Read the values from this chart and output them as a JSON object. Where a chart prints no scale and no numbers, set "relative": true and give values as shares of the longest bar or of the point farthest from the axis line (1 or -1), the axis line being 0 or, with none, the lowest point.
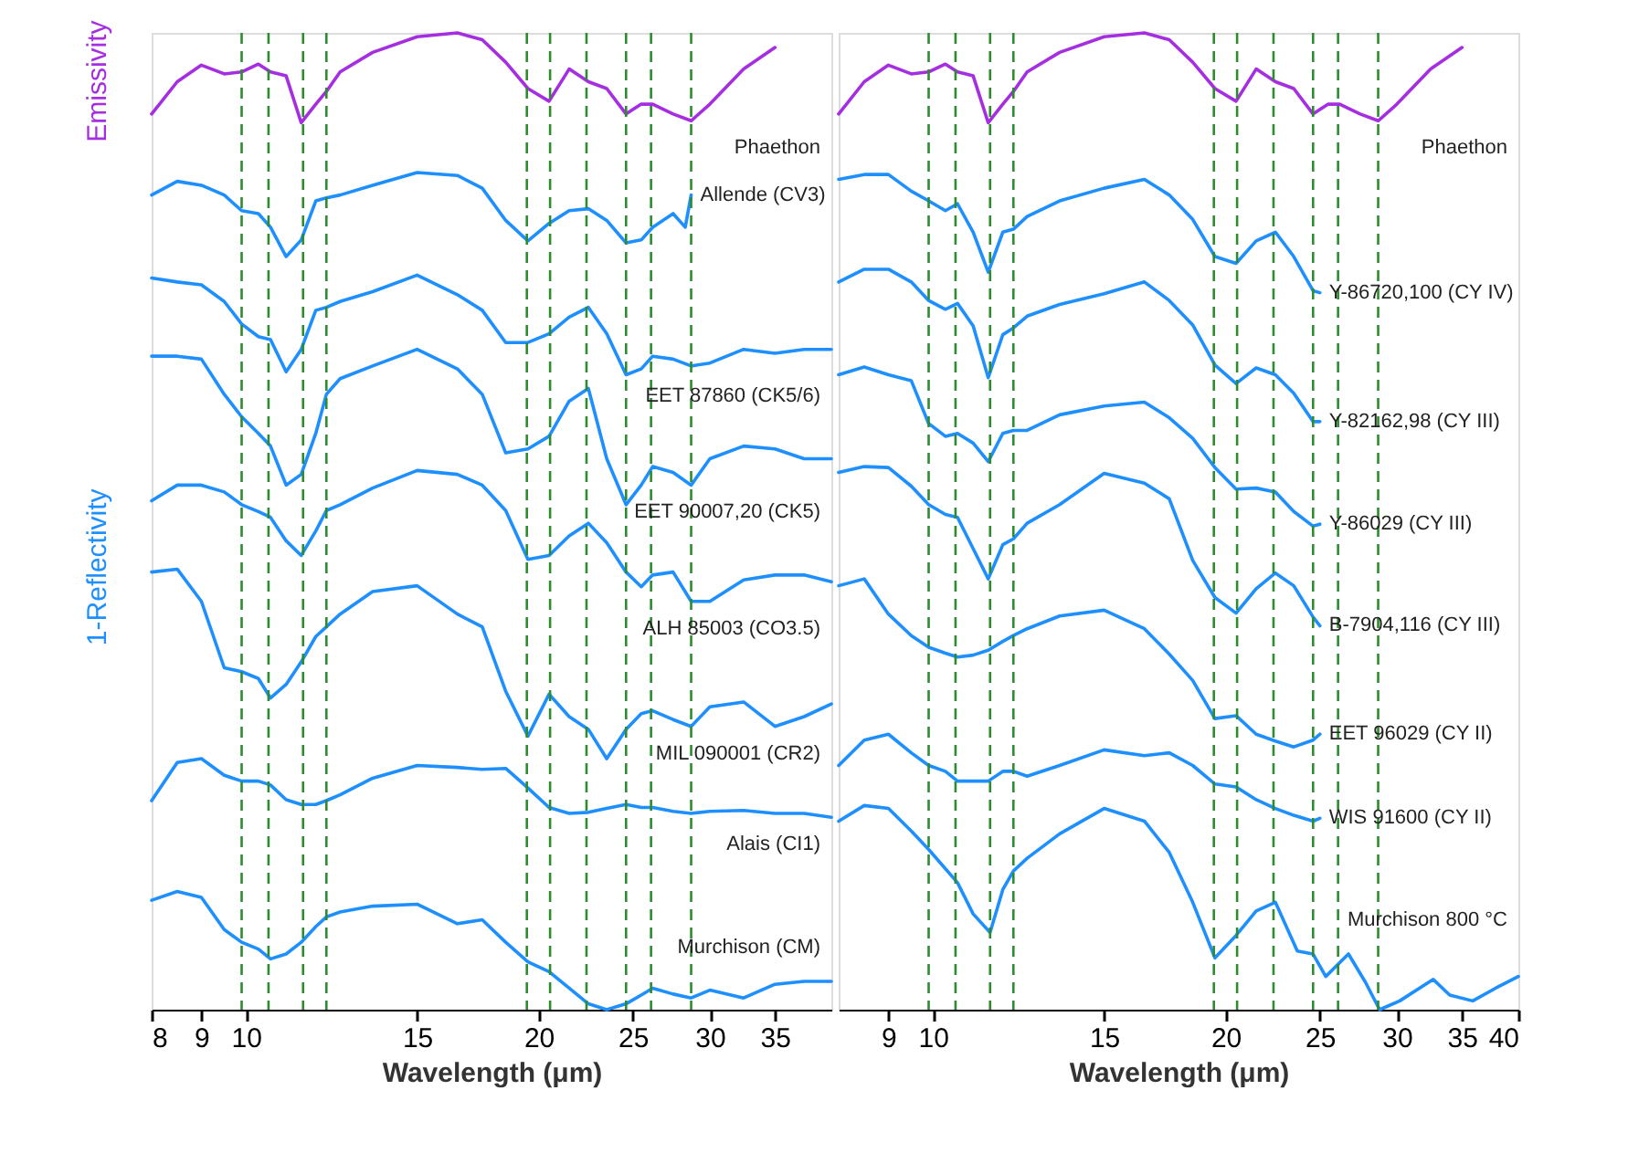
{
  "chart_data": [
    {
      "type": "line",
      "relative": true,
      "xlabel": "Wavelength (μm)",
      "ylabel": "1-Reflectivity",
      "annotations": [
        "Emissivity"
      ],
      "log": "x",
      "xlim": [
        8,
        40
      ],
      "xticks": [
        8,
        9,
        10,
        15,
        20,
        25,
        30,
        35
      ],
      "tick_labels": "x",
      "grid": false,
      "legend": false,
      "line_style": "solid",
      "ref_lines": [
        {
          "axis": "x",
          "value": 9.9,
          "color": "#2e8b2e",
          "line_style": "dashed"
        },
        {
          "axis": "x",
          "value": 10.55,
          "color": "#2e8b2e",
          "line_style": "dashed"
        },
        {
          "axis": "x",
          "value": 11.45,
          "color": "#2e8b2e",
          "line_style": "dashed"
        },
        {
          "axis": "x",
          "value": 12.1,
          "color": "#2e8b2e",
          "line_style": "dashed"
        },
        {
          "axis": "x",
          "value": 19.45,
          "color": "#2e8b2e",
          "line_style": "dashed"
        },
        {
          "axis": "x",
          "value": 20.55,
          "color": "#2e8b2e",
          "line_style": "dashed"
        },
        {
          "axis": "x",
          "value": 22.4,
          "color": "#2e8b2e",
          "line_style": "dashed"
        },
        {
          "axis": "x",
          "value": 24.6,
          "color": "#2e8b2e",
          "line_style": "dashed"
        },
        {
          "axis": "x",
          "value": 26.1,
          "color": "#2e8b2e",
          "line_style": "dashed"
        },
        {
          "axis": "x",
          "value": 28.7,
          "color": "#2e8b2e",
          "line_style": "dashed"
        }
      ],
      "series": [
        {
          "name": "Phaethon",
          "color": "#a52fe0",
          "x": [
            8,
            8.5,
            9,
            9.5,
            9.9,
            10.3,
            10.6,
            11,
            11.4,
            11.8,
            12.1,
            12.5,
            13.5,
            15,
            16.5,
            17.5,
            18.5,
            19.5,
            20.5,
            21.5,
            22.5,
            23.5,
            24.6,
            25.5,
            26.2,
            27.5,
            28.7,
            30,
            32.5,
            35
          ],
          "values": [
            0.917,
            0.95,
            0.967,
            0.958,
            0.96,
            0.968,
            0.96,
            0.956,
            0.908,
            0.927,
            0.94,
            0.96,
            0.98,
            0.996,
            1.0,
            0.993,
            0.97,
            0.943,
            0.93,
            0.963,
            0.95,
            0.943,
            0.917,
            0.927,
            0.927,
            0.917,
            0.91,
            0.927,
            0.963,
            0.985
          ]
        },
        {
          "name": "Allende (CV3)",
          "color": "#1e8fff",
          "x": [
            8,
            8.5,
            9,
            9.5,
            9.9,
            10.3,
            10.6,
            11,
            11.4,
            11.8,
            12.1,
            12.5,
            13.5,
            15,
            16.5,
            17.5,
            18.5,
            19.5,
            20.5,
            21.5,
            22.5,
            23.5,
            24.6,
            25.5,
            26.2,
            27.5,
            28.3,
            28.7
          ],
          "values": [
            0.834,
            0.848,
            0.844,
            0.834,
            0.818,
            0.815,
            0.801,
            0.771,
            0.788,
            0.828,
            0.831,
            0.834,
            0.844,
            0.857,
            0.854,
            0.841,
            0.808,
            0.787,
            0.805,
            0.818,
            0.82,
            0.808,
            0.785,
            0.788,
            0.801,
            0.815,
            0.801,
            0.834
          ]
        },
        {
          "name": "EET 87860 (CK5/6)",
          "color": "#1e8fff",
          "x": [
            8,
            8.5,
            9,
            9.5,
            9.9,
            10.3,
            10.6,
            11,
            11.4,
            11.8,
            12.1,
            12.5,
            13.5,
            15,
            16.5,
            17.5,
            18.5,
            19.5,
            20.5,
            21.5,
            22.5,
            23.5,
            24.6,
            25.5,
            26.2,
            27.5,
            28.7,
            30,
            32.5,
            35,
            37.5,
            40
          ],
          "values": [
            0.749,
            0.745,
            0.742,
            0.725,
            0.702,
            0.689,
            0.686,
            0.653,
            0.676,
            0.716,
            0.719,
            0.725,
            0.735,
            0.752,
            0.732,
            0.716,
            0.683,
            0.683,
            0.692,
            0.709,
            0.719,
            0.692,
            0.65,
            0.656,
            0.669,
            0.666,
            0.659,
            0.662,
            0.676,
            0.672,
            0.676,
            0.676
          ]
        },
        {
          "name": "EET 90007,20 (CK5)",
          "color": "#1e8fff",
          "x": [
            8,
            8.5,
            9,
            9.5,
            9.9,
            10.3,
            10.6,
            11,
            11.4,
            11.8,
            12.1,
            12.5,
            13.5,
            15,
            16.5,
            17.5,
            18.5,
            19.5,
            20.5,
            21.5,
            22.5,
            23.5,
            24.6,
            25.5,
            26.2,
            27.5,
            28.7,
            30,
            32.5,
            35,
            37.5,
            40
          ],
          "values": [
            0.669,
            0.669,
            0.666,
            0.63,
            0.607,
            0.59,
            0.577,
            0.537,
            0.548,
            0.59,
            0.63,
            0.646,
            0.659,
            0.676,
            0.656,
            0.63,
            0.57,
            0.574,
            0.587,
            0.623,
            0.636,
            0.564,
            0.517,
            0.537,
            0.556,
            0.55,
            0.537,
            0.564,
            0.577,
            0.574,
            0.564,
            0.564
          ]
        },
        {
          "name": "ALH 85003 (CO3.5)",
          "color": "#1e8fff",
          "x": [
            8,
            8.5,
            9,
            9.5,
            9.9,
            10.3,
            10.6,
            11,
            11.4,
            11.8,
            12.1,
            12.5,
            13.5,
            15,
            16.5,
            17.5,
            18.5,
            19.5,
            20.5,
            21.5,
            22.5,
            23.5,
            24.6,
            25.5,
            26.2,
            27.5,
            28.7,
            30,
            32.5,
            35,
            37.5,
            40
          ],
          "values": [
            0.521,
            0.537,
            0.537,
            0.53,
            0.517,
            0.51,
            0.504,
            0.48,
            0.465,
            0.49,
            0.511,
            0.517,
            0.534,
            0.552,
            0.548,
            0.537,
            0.511,
            0.461,
            0.465,
            0.485,
            0.498,
            0.478,
            0.448,
            0.433,
            0.445,
            0.448,
            0.418,
            0.418,
            0.44,
            0.445,
            0.445,
            0.438
          ]
        },
        {
          "name": "MIL 090001 (CR2)",
          "color": "#1e8fff",
          "x": [
            8,
            8.5,
            9,
            9.5,
            9.9,
            10.3,
            10.6,
            11,
            11.4,
            11.8,
            12.1,
            12.5,
            13.5,
            15,
            16.5,
            17.5,
            18.5,
            19.5,
            20.5,
            21.5,
            22.5,
            23.5,
            24.6,
            25.5,
            26.2,
            27.5,
            28.7,
            30,
            32.5,
            35,
            37.5,
            40
          ],
          "values": [
            0.448,
            0.451,
            0.418,
            0.35,
            0.346,
            0.339,
            0.319,
            0.333,
            0.356,
            0.382,
            0.392,
            0.405,
            0.428,
            0.434,
            0.405,
            0.392,
            0.326,
            0.28,
            0.323,
            0.3,
            0.287,
            0.257,
            0.287,
            0.303,
            0.306,
            0.297,
            0.29,
            0.31,
            0.315,
            0.29,
            0.3,
            0.313
          ]
        },
        {
          "name": "Alais (CI1)",
          "color": "#1e8fff",
          "x": [
            8,
            8.5,
            9,
            9.5,
            9.9,
            10.3,
            10.6,
            11,
            11.4,
            11.8,
            12.1,
            12.5,
            13.5,
            15,
            16.5,
            17.5,
            18.5,
            19.5,
            20.5,
            21.5,
            22.5,
            23.5,
            24.6,
            25.5,
            26.2,
            27.5,
            28.7,
            30,
            32.5,
            35,
            37.5,
            40
          ],
          "values": [
            0.214,
            0.253,
            0.257,
            0.24,
            0.234,
            0.234,
            0.23,
            0.215,
            0.21,
            0.21,
            0.214,
            0.22,
            0.237,
            0.25,
            0.248,
            0.246,
            0.247,
            0.227,
            0.207,
            0.201,
            0.202,
            0.206,
            0.21,
            0.207,
            0.207,
            0.203,
            0.201,
            0.203,
            0.204,
            0.201,
            0.201,
            0.197
          ]
        },
        {
          "name": "Murchison (CM)",
          "color": "#1e8fff",
          "x": [
            8,
            8.5,
            9,
            9.5,
            9.9,
            10.3,
            10.6,
            11,
            11.4,
            11.8,
            12.1,
            12.5,
            13.5,
            15,
            16.5,
            17.5,
            18.5,
            19.5,
            20.5,
            21.5,
            22.5,
            23.5,
            24.6,
            25.5,
            26.2,
            27.5,
            28.7,
            30,
            32.5,
            35,
            37.5,
            40
          ],
          "values": [
            0.112,
            0.121,
            0.115,
            0.082,
            0.069,
            0.062,
            0.052,
            0.057,
            0.069,
            0.085,
            0.095,
            0.1,
            0.106,
            0.108,
            0.088,
            0.092,
            0.069,
            0.049,
            0.039,
            0.022,
            0.006,
            0,
            0.006,
            0.015,
            0.022,
            0.016,
            0.012,
            0.02,
            0.012,
            0.026,
            0.029,
            0.029
          ]
        }
      ]
    },
    {
      "type": "line",
      "relative": true,
      "xlabel": "Wavelength (μm)",
      "log": "x",
      "xlim": [
        8,
        40
      ],
      "xticks": [
        9,
        10,
        15,
        20,
        25,
        30,
        35,
        40
      ],
      "tick_labels": "x",
      "grid": false,
      "legend": false,
      "line_style": "solid",
      "ref_lines": [
        {
          "axis": "x",
          "value": 9.9,
          "color": "#2e8b2e",
          "line_style": "dashed"
        },
        {
          "axis": "x",
          "value": 10.55,
          "color": "#2e8b2e",
          "line_style": "dashed"
        },
        {
          "axis": "x",
          "value": 11.45,
          "color": "#2e8b2e",
          "line_style": "dashed"
        },
        {
          "axis": "x",
          "value": 12.1,
          "color": "#2e8b2e",
          "line_style": "dashed"
        },
        {
          "axis": "x",
          "value": 19.45,
          "color": "#2e8b2e",
          "line_style": "dashed"
        },
        {
          "axis": "x",
          "value": 20.55,
          "color": "#2e8b2e",
          "line_style": "dashed"
        },
        {
          "axis": "x",
          "value": 22.4,
          "color": "#2e8b2e",
          "line_style": "dashed"
        },
        {
          "axis": "x",
          "value": 24.6,
          "color": "#2e8b2e",
          "line_style": "dashed"
        },
        {
          "axis": "x",
          "value": 26.1,
          "color": "#2e8b2e",
          "line_style": "dashed"
        },
        {
          "axis": "x",
          "value": 28.7,
          "color": "#2e8b2e",
          "line_style": "dashed"
        }
      ],
      "series": [
        {
          "name": "Phaethon",
          "color": "#a52fe0",
          "x": [
            8,
            8.5,
            9,
            9.5,
            9.9,
            10.3,
            10.6,
            11,
            11.4,
            11.8,
            12.1,
            12.5,
            13.5,
            15,
            16.5,
            17.5,
            18.5,
            19.5,
            20.5,
            21.5,
            22.5,
            23.5,
            24.6,
            25.5,
            26.2,
            27.5,
            28.7,
            30,
            32.5,
            35
          ],
          "values": [
            0.917,
            0.95,
            0.967,
            0.958,
            0.96,
            0.968,
            0.96,
            0.956,
            0.908,
            0.927,
            0.94,
            0.96,
            0.98,
            0.996,
            1.0,
            0.993,
            0.97,
            0.943,
            0.93,
            0.963,
            0.95,
            0.943,
            0.917,
            0.927,
            0.927,
            0.917,
            0.91,
            0.927,
            0.963,
            0.985
          ]
        },
        {
          "name": "Y-86720,100 (CY IV)",
          "color": "#1e8fff",
          "x": [
            8,
            8.5,
            9,
            9.5,
            9.9,
            10.3,
            10.6,
            11,
            11.4,
            11.8,
            12.1,
            12.5,
            13.5,
            15,
            16.5,
            17.5,
            18.5,
            19.5,
            20.5,
            21.5,
            22.5,
            23.5,
            24.6,
            25
          ],
          "values": [
            0.85,
            0.855,
            0.855,
            0.838,
            0.828,
            0.818,
            0.825,
            0.796,
            0.755,
            0.796,
            0.799,
            0.812,
            0.828,
            0.841,
            0.85,
            0.834,
            0.809,
            0.771,
            0.764,
            0.787,
            0.796,
            0.771,
            0.736,
            0.734
          ]
        },
        {
          "name": "Y-82162,98 (CY III)",
          "color": "#1e8fff",
          "x": [
            8,
            8.5,
            9,
            9.5,
            9.9,
            10.3,
            10.6,
            11,
            11.4,
            11.8,
            12.1,
            12.5,
            13.5,
            15,
            16.5,
            17.5,
            18.5,
            19.5,
            20.5,
            21.5,
            22.5,
            23.5,
            24.6,
            25
          ],
          "values": [
            0.745,
            0.758,
            0.758,
            0.745,
            0.726,
            0.717,
            0.723,
            0.7,
            0.647,
            0.691,
            0.698,
            0.71,
            0.722,
            0.733,
            0.745,
            0.726,
            0.701,
            0.66,
            0.641,
            0.657,
            0.65,
            0.631,
            0.602,
            0.602
          ]
        },
        {
          "name": "Y-86029 (CY III)",
          "color": "#1e8fff",
          "x": [
            8,
            8.5,
            9,
            9.5,
            9.9,
            10.3,
            10.6,
            11,
            11.4,
            11.8,
            12.1,
            12.5,
            13.5,
            15,
            16.5,
            17.5,
            18.5,
            19.5,
            20.5,
            21.5,
            22.5,
            23.5,
            24.6,
            25
          ],
          "values": [
            0.65,
            0.658,
            0.65,
            0.644,
            0.6,
            0.587,
            0.59,
            0.58,
            0.561,
            0.59,
            0.593,
            0.593,
            0.609,
            0.618,
            0.622,
            0.606,
            0.585,
            0.555,
            0.533,
            0.534,
            0.53,
            0.51,
            0.495,
            0.497
          ]
        },
        {
          "name": "B-7904,116 (CY III)",
          "color": "#1e8fff",
          "x": [
            8,
            8.5,
            9,
            9.5,
            9.9,
            10.3,
            10.6,
            11,
            11.4,
            11.8,
            12.1,
            12.5,
            13.5,
            15,
            16.5,
            17.5,
            18.5,
            19.5,
            20.5,
            21.5,
            22.5,
            23.5,
            24.6,
            25
          ],
          "values": [
            0.55,
            0.556,
            0.555,
            0.536,
            0.517,
            0.507,
            0.504,
            0.472,
            0.441,
            0.476,
            0.482,
            0.498,
            0.517,
            0.549,
            0.539,
            0.523,
            0.46,
            0.422,
            0.406,
            0.431,
            0.447,
            0.434,
            0.402,
            0.393
          ]
        },
        {
          "name": "EET 96029 (CY II)",
          "color": "#1e8fff",
          "x": [
            8,
            8.5,
            9,
            9.5,
            9.9,
            10.3,
            10.6,
            11,
            11.4,
            11.8,
            12.1,
            12.5,
            13.5,
            15,
            16.5,
            17.5,
            18.5,
            19.5,
            20.5,
            21.5,
            22.5,
            23.5,
            24.6,
            25
          ],
          "values": [
            0.434,
            0.441,
            0.405,
            0.383,
            0.371,
            0.365,
            0.361,
            0.363,
            0.368,
            0.377,
            0.383,
            0.39,
            0.403,
            0.409,
            0.39,
            0.364,
            0.337,
            0.298,
            0.301,
            0.282,
            0.275,
            0.269,
            0.276,
            0.282
          ]
        },
        {
          "name": "WIS 91600 (CY II)",
          "color": "#1e8fff",
          "x": [
            8,
            8.5,
            9,
            9.5,
            9.9,
            10.3,
            10.6,
            11,
            11.4,
            11.8,
            12.1,
            12.5,
            13.5,
            15,
            16.5,
            17.5,
            18.5,
            19.5,
            20.5,
            21.5,
            22.5,
            23.5,
            24.6,
            25
          ],
          "values": [
            0.25,
            0.276,
            0.282,
            0.263,
            0.25,
            0.244,
            0.234,
            0.234,
            0.234,
            0.244,
            0.244,
            0.239,
            0.25,
            0.266,
            0.26,
            0.263,
            0.25,
            0.231,
            0.228,
            0.215,
            0.206,
            0.199,
            0.193,
            0.196
          ]
        },
        {
          "name": "Murchison 800 °C",
          "color": "#1e8fff",
          "x": [
            8,
            8.5,
            9,
            9.5,
            9.9,
            10.6,
            11,
            11.45,
            11.8,
            12.1,
            12.5,
            13.5,
            15,
            16.5,
            17.5,
            18.5,
            19.5,
            20.5,
            21.5,
            22.5,
            23.7,
            24.6,
            25.35,
            26.75,
            27.85,
            28.8,
            30.2,
            32.7,
            34,
            35.9,
            37.9,
            40
          ],
          "values": [
            0.193,
            0.209,
            0.206,
            0.183,
            0.164,
            0.13,
            0.098,
            0.079,
            0.123,
            0.142,
            0.155,
            0.18,
            0.206,
            0.193,
            0.161,
            0.11,
            0.053,
            0.076,
            0.101,
            0.11,
            0.06,
            0.057,
            0.034,
            0.057,
            0.028,
            0,
            0.009,
            0.031,
            0.015,
            0.009,
            0.022,
            0.034
          ]
        }
      ]
    }
  ]
}
